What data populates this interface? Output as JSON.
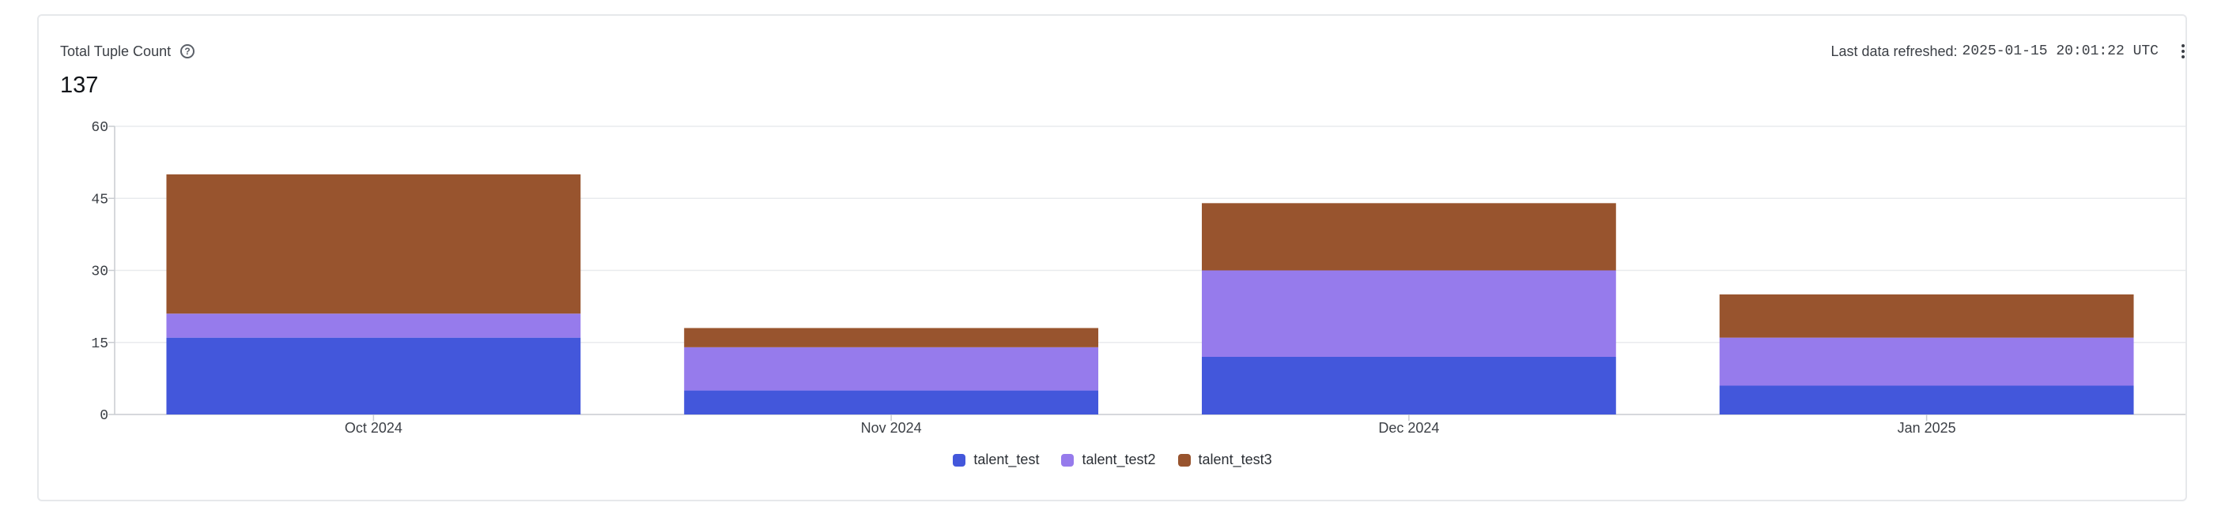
{
  "header": {
    "title": "Total Tuple Count",
    "help_icon": "question-circle-icon",
    "total_value": "137",
    "refresh_label": "Last data refreshed:",
    "refresh_value": "2025-01-15 20:01:22 UTC",
    "menu_icon": "kebab-menu-icon"
  },
  "chart_data": {
    "type": "bar",
    "stacked": true,
    "categories": [
      "Oct 2024",
      "Nov 2024",
      "Dec 2024",
      "Jan 2025"
    ],
    "series": [
      {
        "name": "talent_test",
        "values": [
          16,
          5,
          12,
          6
        ],
        "color": "#4357db"
      },
      {
        "name": "talent_test2",
        "values": [
          5,
          9,
          18,
          10
        ],
        "color": "#967bec"
      },
      {
        "name": "talent_test3",
        "values": [
          29,
          4,
          14,
          9
        ],
        "color": "#98542e"
      }
    ],
    "yticks": [
      0,
      15,
      30,
      45,
      60
    ],
    "ylim": [
      0,
      60
    ],
    "grid": true,
    "legend_position": "bottom-center"
  }
}
